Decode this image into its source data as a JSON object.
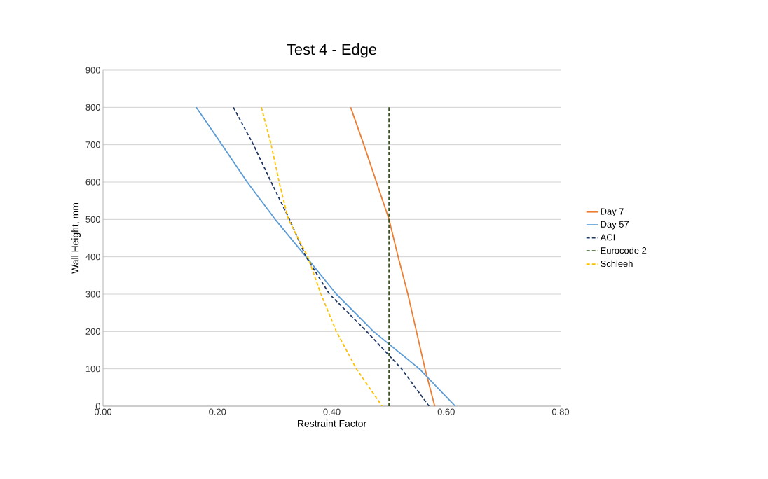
{
  "chart_data": {
    "type": "line",
    "title": "Test 4 - Edge",
    "xlabel": "Restraint Factor",
    "ylabel": "Wall Height, mm",
    "xlim": [
      0,
      0.8
    ],
    "xticks": [
      {
        "value": 0,
        "label": "0.00"
      },
      {
        "value": 0.2,
        "label": "0.20"
      },
      {
        "value": 0.4,
        "label": "0.40"
      },
      {
        "value": 0.6,
        "label": "0.60"
      },
      {
        "value": 0.8,
        "label": "0.80"
      }
    ],
    "ylim": [
      0,
      900
    ],
    "yticks": [
      0,
      100,
      200,
      300,
      400,
      500,
      600,
      700,
      800,
      900
    ],
    "grid": "y",
    "legend": "right",
    "series": [
      {
        "name": "Day 7",
        "color": "#ed7d31",
        "line_style": "solid",
        "x": [
          0.433,
          0.456,
          0.478,
          0.5,
          0.516,
          0.533,
          0.548,
          0.563,
          0.58
        ],
        "values": [
          800,
          700,
          600,
          500,
          400,
          300,
          200,
          100,
          0
        ]
      },
      {
        "name": "Day 57",
        "color": "#5b9bd5",
        "line_style": "solid",
        "x": [
          0.163,
          0.208,
          0.252,
          0.301,
          0.355,
          0.408,
          0.473,
          0.553,
          0.616
        ],
        "values": [
          800,
          700,
          600,
          500,
          400,
          300,
          200,
          100,
          0
        ]
      },
      {
        "name": "ACI",
        "color": "#203864",
        "line_style": "dashed",
        "x": [
          0.228,
          0.263,
          0.294,
          0.326,
          0.355,
          0.396,
          0.461,
          0.522,
          0.57
        ],
        "values": [
          800,
          700,
          600,
          500,
          400,
          300,
          200,
          100,
          0
        ]
      },
      {
        "name": "Eurocode 2",
        "color": "#375623",
        "line_style": "dashed",
        "x": [
          0.5,
          0.5
        ],
        "values": [
          800,
          0
        ]
      },
      {
        "name": "Schleeh",
        "color": "#ffc000",
        "line_style": "dashed",
        "x": [
          0.277,
          0.294,
          0.308,
          0.324,
          0.358,
          0.381,
          0.408,
          0.443,
          0.488
        ],
        "values": [
          800,
          700,
          600,
          500,
          400,
          300,
          200,
          100,
          0
        ]
      }
    ]
  }
}
